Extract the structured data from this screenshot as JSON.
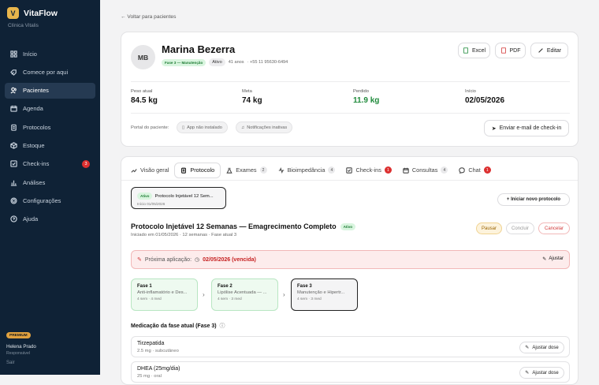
{
  "app": {
    "name": "VitaFlow",
    "logo_letter": "V",
    "clinic": "Clínica Vitalis"
  },
  "nav": [
    {
      "label": "Início",
      "icon": "grid-icon"
    },
    {
      "label": "Comece por aqui",
      "icon": "rocket-icon"
    },
    {
      "label": "Pacientes",
      "icon": "users-icon",
      "active": true
    },
    {
      "label": "Agenda",
      "icon": "calendar-icon"
    },
    {
      "label": "Protocolos",
      "icon": "clipboard-icon"
    },
    {
      "label": "Estoque",
      "icon": "box-icon"
    },
    {
      "label": "Check-ins",
      "icon": "check-square-icon",
      "badge": "3"
    },
    {
      "label": "Análises",
      "icon": "bar-chart-icon"
    },
    {
      "label": "Configurações",
      "icon": "gear-icon"
    },
    {
      "label": "Ajuda",
      "icon": "help-icon"
    }
  ],
  "user": {
    "plan": "PREMIUM",
    "name": "Helena Prado",
    "role": "Responsável",
    "logout": "Sair"
  },
  "back": "← Voltar para pacientes",
  "patient": {
    "initials": "MB",
    "name": "Marina Bezerra",
    "phase_pill": "Fase 3 — Manutenção",
    "status": "Ativo",
    "age": "41 anos",
    "phone": "· +55 11 95630-6494",
    "actions": {
      "excel": "Excel",
      "pdf": "PDF",
      "edit": "Editar"
    },
    "stats": [
      {
        "label": "Peso atual",
        "value": "84.5 kg",
        "color": "#111111"
      },
      {
        "label": "Meta",
        "value": "74 kg",
        "color": "#111111"
      },
      {
        "label": "Perdido",
        "value": "11.9 kg",
        "color": "#1f8a3b"
      },
      {
        "label": "Início",
        "value": "02/05/2026",
        "color": "#111111"
      }
    ],
    "portal_label": "Portal do paciente:",
    "portal_app": "App não instalado",
    "portal_notif": "Notificações inativas",
    "send_checkin": "Enviar e-mail de check-in"
  },
  "tabs": [
    {
      "label": "Visão geral",
      "icon": "trend-icon"
    },
    {
      "label": "Protocolo",
      "icon": "clipboard-icon",
      "active": true
    },
    {
      "label": "Exames",
      "icon": "flask-icon",
      "count": "2"
    },
    {
      "label": "Bioimpedância",
      "icon": "pulse-icon",
      "count": "4"
    },
    {
      "label": "Check-ins",
      "icon": "check-square-icon",
      "badge": "1"
    },
    {
      "label": "Consultas",
      "icon": "calendar-icon",
      "count": "4"
    },
    {
      "label": "Chat",
      "icon": "chat-icon",
      "badge": "1"
    }
  ],
  "protocol": {
    "selector": {
      "status": "Ativo",
      "name": "Protocolo Injetável 12 Sem...",
      "start": "Início 01/05/2026"
    },
    "new_button": "+ Iniciar novo protocolo",
    "title": "Protocolo Injetável 12 Semanas — Emagrecimento Completo",
    "status": "Ativo",
    "subtitle": "Iniciado em 01/05/2026 · 12 semanas · Fase atual 3",
    "actions": {
      "pause": "Pausar",
      "finish": "Concluir",
      "cancel": "Cancelar"
    },
    "next_label": "Próxima aplicação:",
    "next_value": "02/05/2026 (vencida)",
    "adjust": "Ajustar",
    "phases": [
      {
        "name": "Fase 1",
        "desc": "Anti-inflamatório e Des...",
        "meta": "4 sem · 4 med"
      },
      {
        "name": "Fase 2",
        "desc": "Lipólise Acentuada — ...",
        "meta": "4 sem · 3 med"
      },
      {
        "name": "Fase 3",
        "desc": "Manutenção e Hipertr...",
        "meta": "4 sem · 3 med"
      }
    ],
    "meds_title": "Medicação da fase atual (Fase 3)",
    "meds": [
      {
        "name": "Tirzepatida",
        "dose": "2.5 mg · subcutâneo",
        "action": "Ajustar dose"
      },
      {
        "name": "DHEA (25mg/dia)",
        "dose": "25 mg · oral",
        "action": "Ajustar dose"
      }
    ]
  }
}
